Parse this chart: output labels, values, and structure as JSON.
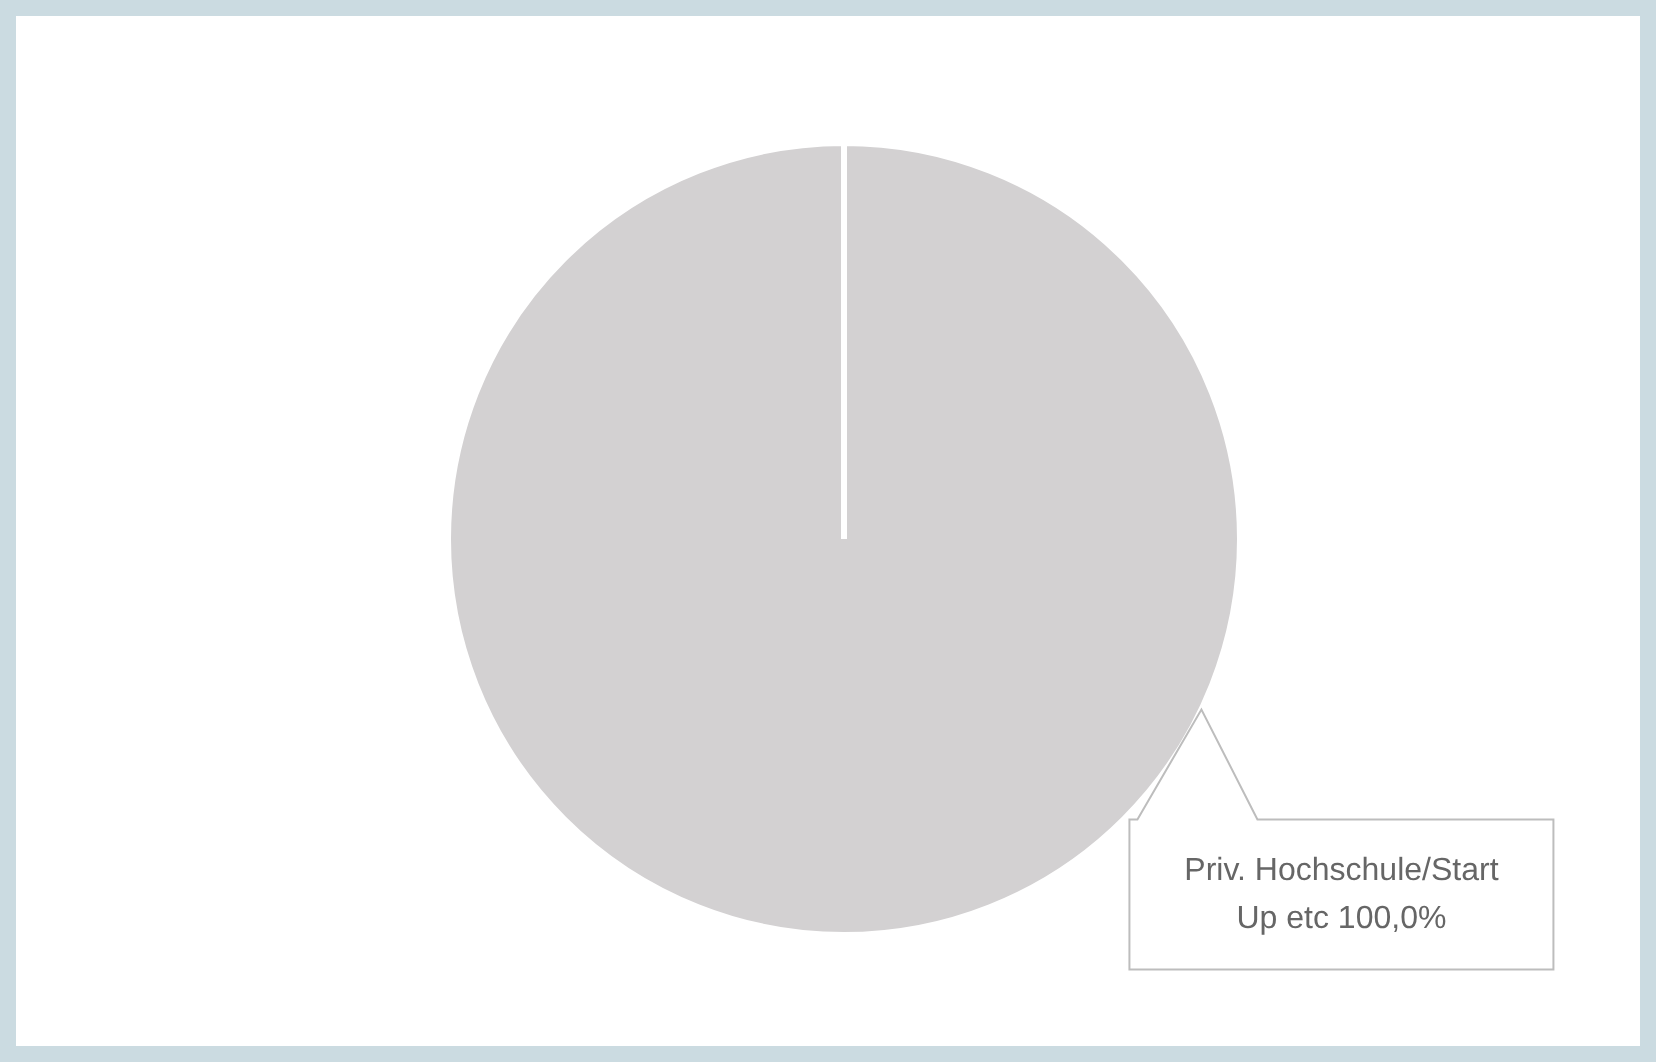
{
  "chart_data": {
    "type": "pie",
    "categories": [
      "Priv. Hochschule/Start Up etc"
    ],
    "values": [
      100
    ],
    "colors": [
      "#d3d1d2"
    ],
    "value_labels": [
      "100,0%"
    ],
    "legend": false
  }
}
